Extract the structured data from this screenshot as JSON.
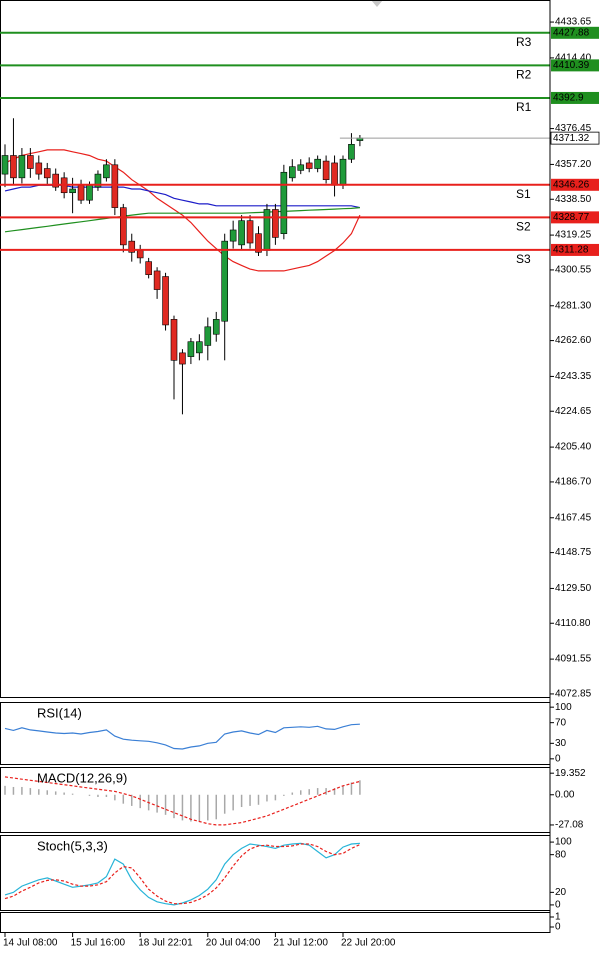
{
  "chart_data": [
    {
      "type": "candlestick",
      "categories": [
        "14 Jul 08:00",
        null,
        null,
        null,
        null,
        null,
        null,
        null,
        "15 Jul 16:00",
        null,
        null,
        null,
        null,
        null,
        null,
        null,
        "18 Jul 22:01",
        null,
        null,
        null,
        null,
        null,
        null,
        null,
        "20 Jul 04:00",
        null,
        null,
        null,
        null,
        null,
        null,
        null,
        "21 Jul 12:00",
        null,
        null,
        null,
        null,
        null,
        null,
        null,
        "22 Jul 20:00",
        null,
        null
      ],
      "open": [
        4352,
        4362,
        4350,
        4362,
        4358,
        4355,
        4352,
        4350,
        4342,
        4346,
        4338,
        4345,
        4350,
        4357,
        4334,
        4316,
        4311,
        4305,
        4300,
        4297,
        4274,
        4256,
        4254,
        4256,
        4260,
        4266,
        4273,
        4316,
        4314,
        4327,
        4320,
        4311,
        4333,
        4320,
        4350,
        4354,
        4358,
        4355,
        4359,
        4358,
        4346,
        4360,
        4370
      ],
      "high": [
        4368,
        4382,
        4366,
        4366,
        4362,
        4358,
        4355,
        4353,
        4350,
        4349,
        4348,
        4354,
        4360,
        4360,
        4336,
        4320,
        4314,
        4307,
        4302,
        4299,
        4276,
        4258,
        4264,
        4266,
        4275,
        4278,
        4320,
        4327,
        4330,
        4330,
        4324,
        4336,
        4336,
        4357,
        4360,
        4360,
        4361,
        4362,
        4362,
        4362,
        4362,
        4374,
        4373
      ],
      "low": [
        4345,
        4346,
        4347,
        4350,
        4349,
        4346,
        4343,
        4339,
        4331,
        4336,
        4336,
        4343,
        4348,
        4330,
        4310,
        4305,
        4304,
        4296,
        4285,
        4268,
        4231,
        4223,
        4250,
        4252,
        4252,
        4262,
        4252,
        4312,
        4311,
        4312,
        4308,
        4308,
        4314,
        4317,
        4348,
        4352,
        4353,
        4353,
        4347,
        4340,
        4344,
        4358,
        4367
      ],
      "close": [
        4362,
        4350,
        4362,
        4355,
        4352,
        4350,
        4345,
        4342,
        4344,
        4338,
        4346,
        4352,
        4357,
        4334,
        4314,
        4310,
        4307,
        4298,
        4290,
        4271,
        4252,
        4250,
        4262,
        4262,
        4270,
        4274,
        4316,
        4322,
        4327,
        4315,
        4310,
        4333,
        4318,
        4353,
        4356,
        4357,
        4355,
        4360,
        4349,
        4346,
        4360,
        4368,
        4371.32
      ],
      "up_color": "#1f9a3a",
      "down_color": "#e02a22",
      "overlays": [
        {
          "color": "#e8201c",
          "values": [
            4358,
            4360,
            4362,
            4363,
            4364,
            4365,
            4365,
            4365,
            4364,
            4363,
            4362,
            4360,
            4359,
            4356,
            4353,
            4349,
            4346,
            4343,
            4339,
            4336,
            4333,
            4330,
            4326,
            4321,
            4316,
            4312,
            4308,
            4305,
            4303,
            4301,
            4300,
            4300,
            4300,
            4300,
            4301,
            4302,
            4303,
            4305,
            4308,
            4311,
            4315,
            4320,
            4330
          ]
        },
        {
          "color": "#1c1cc8",
          "values": [
            4343,
            4344,
            4345,
            4345,
            4346,
            4346,
            4346,
            4346,
            4345,
            4345,
            4345,
            4345,
            4345,
            4345,
            4345,
            4344,
            4344,
            4343,
            4342,
            4341,
            4339,
            4338,
            4337,
            4336,
            4336,
            4335,
            4335,
            4335,
            4335,
            4335,
            4335,
            4335,
            4335,
            4335,
            4335,
            4335,
            4335,
            4335,
            4335,
            4335,
            4335,
            4335,
            4334
          ]
        },
        {
          "color": "#1f8f1f",
          "values": [
            4321,
            4321.6,
            4322.2,
            4322.8,
            4323.4,
            4324,
            4324.6,
            4325.2,
            4325.8,
            4326.4,
            4327,
            4327.6,
            4328.2,
            4328.8,
            4329.4,
            4330,
            4330.5,
            4331,
            4331,
            4331,
            4331,
            4331,
            4331,
            4331,
            4331,
            4331,
            4331,
            4331,
            4331,
            4331.2,
            4331.4,
            4331.6,
            4331.8,
            4332,
            4332.2,
            4332.4,
            4332.6,
            4332.8,
            4333,
            4333.2,
            4333.4,
            4333.6,
            4334
          ]
        }
      ],
      "levels": [
        {
          "name": "R3",
          "value": 4427.88,
          "color": "#1f8f1f"
        },
        {
          "name": "R2",
          "value": 4410.39,
          "color": "#1f8f1f"
        },
        {
          "name": "R1",
          "value": 4392.9,
          "color": "#1f8f1f"
        },
        {
          "name": "S1",
          "value": 4346.26,
          "color": "#e8201c"
        },
        {
          "name": "S2",
          "value": 4328.77,
          "color": "#e8201c"
        },
        {
          "name": "S3",
          "value": 4311.28,
          "color": "#e8201c"
        }
      ],
      "last_price": 4371.32,
      "ylim": [
        4071.2,
        4445.5
      ],
      "yticks": [
        4433.65,
        {
          "value": 4414.4,
          "label": "4414.40"
        },
        4376.45,
        {
          "value": 4357.2,
          "label": "4357.20"
        },
        {
          "value": 4338.5,
          "label": "4338.50"
        },
        4319.25,
        4300.55,
        {
          "value": 4281.3,
          "label": "4281.30"
        },
        {
          "value": 4262.6,
          "label": "4262.60"
        },
        4243.35,
        4224.65,
        {
          "value": 4205.4,
          "label": "4205.40"
        },
        {
          "value": 4186.7,
          "label": "4186.70"
        },
        4167.45,
        4148.75,
        {
          "value": 4129.5,
          "label": "4129.50"
        },
        {
          "value": 4110.8,
          "label": "4110.80"
        },
        4091.55,
        4072.85
      ]
    },
    {
      "type": "indicator",
      "title": "RSI(14)",
      "ylim": [
        -10,
        110
      ],
      "yticks": [
        100,
        70,
        30,
        0
      ],
      "series": [
        {
          "style": "line",
          "color": "#3a7fd5",
          "values": [
            59,
            55,
            60,
            56,
            54,
            52,
            50,
            49,
            50,
            48,
            51,
            53,
            56,
            44,
            38,
            36,
            35,
            34,
            31,
            27,
            20,
            19,
            23,
            25,
            30,
            32,
            48,
            52,
            54,
            50,
            47,
            55,
            51,
            60,
            61,
            62,
            61,
            63,
            58,
            57,
            62,
            66,
            67
          ]
        }
      ]
    },
    {
      "type": "indicator",
      "title": "MACD(12,26,9)",
      "ylim": [
        -33.4,
        24.9
      ],
      "yticks": [
        19.352,
        {
          "value": 0,
          "label": "0.00"
        },
        -27.08
      ],
      "series": [
        {
          "style": "bar",
          "color": "#a8a8a8",
          "values": [
            8,
            7,
            7,
            6,
            5,
            4,
            3,
            2,
            1,
            0,
            -1,
            -2,
            -2,
            -5,
            -8,
            -10,
            -12,
            -14,
            -16,
            -18,
            -21,
            -23,
            -24,
            -24,
            -23,
            -22,
            -17,
            -14,
            -11,
            -10,
            -9,
            -6,
            -5,
            -1,
            2,
            4,
            5,
            6,
            6,
            6,
            8,
            11,
            13
          ]
        },
        {
          "style": "dashed",
          "color": "#e8201c",
          "values": [
            16,
            15,
            14,
            13,
            12,
            11,
            10,
            9,
            8,
            7,
            6,
            5,
            4,
            3,
            1,
            -1,
            -4,
            -7,
            -10,
            -13,
            -16,
            -19,
            -22,
            -24,
            -26,
            -27,
            -27,
            -26,
            -25,
            -23,
            -21,
            -19,
            -16,
            -13,
            -10,
            -7,
            -4,
            -1,
            2,
            5,
            8,
            10,
            12
          ]
        }
      ]
    },
    {
      "type": "indicator",
      "title": "Stoch(5,3,3)",
      "ylim": [
        -8.1,
        111.3
      ],
      "yticks": [
        100,
        80,
        20,
        0
      ],
      "series": [
        {
          "style": "line",
          "color": "#28b4d8",
          "values": [
            16,
            20,
            30,
            35,
            40,
            43,
            38,
            33,
            28,
            30,
            32,
            35,
            45,
            73,
            65,
            40,
            24,
            12,
            5,
            2,
            0,
            3,
            8,
            15,
            25,
            40,
            65,
            80,
            90,
            97,
            95,
            93,
            90,
            95,
            97,
            98,
            95,
            85,
            75,
            80,
            92,
            97,
            98
          ]
        },
        {
          "style": "dashed",
          "color": "#e8201c",
          "values": [
            10,
            14,
            22,
            28,
            35,
            39,
            40,
            38,
            33,
            30,
            30,
            32,
            37,
            51,
            61,
            59,
            43,
            25,
            14,
            6,
            2,
            2,
            4,
            9,
            16,
            27,
            43,
            62,
            78,
            89,
            94,
            95,
            93,
            93,
            94,
            97,
            97,
            93,
            85,
            80,
            82,
            90,
            96
          ]
        }
      ]
    },
    {
      "type": "indicator",
      "ylim": [
        -0.5,
        1.5
      ],
      "yticks": [
        1,
        0
      ]
    }
  ]
}
